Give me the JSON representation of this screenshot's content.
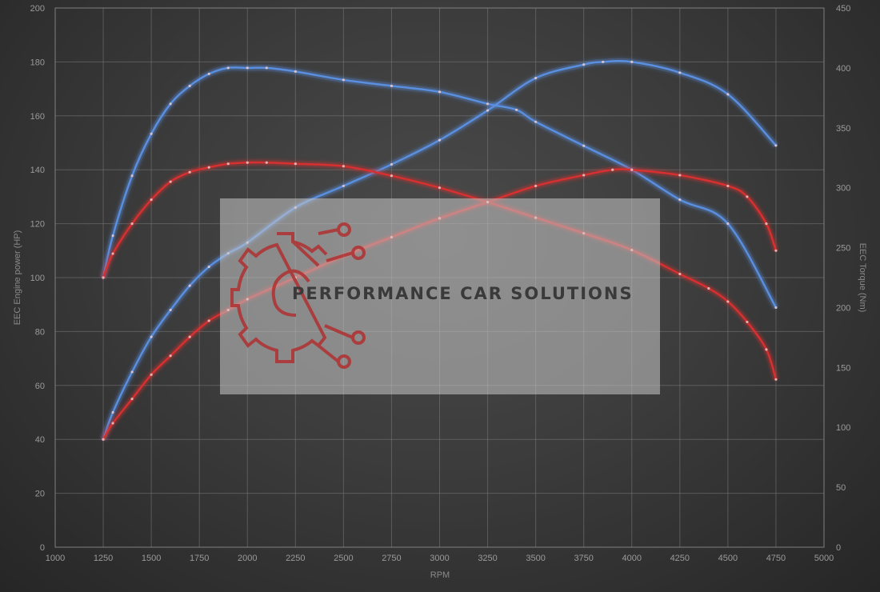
{
  "chart_data": {
    "type": "line",
    "xlabel": "RPM",
    "ylabel": "EEC Engine power (HP)",
    "y2label": "EEC Torque (Nm)",
    "xlim": [
      1000,
      5000
    ],
    "ylim": [
      0,
      200
    ],
    "y2lim": [
      0,
      450
    ],
    "x_ticks": [
      1000,
      1250,
      1500,
      1750,
      2000,
      2250,
      2500,
      2750,
      3000,
      3250,
      3500,
      3750,
      4000,
      4250,
      4500,
      4750,
      5000
    ],
    "y_ticks": [
      0,
      20,
      40,
      60,
      80,
      100,
      120,
      140,
      160,
      180,
      200
    ],
    "y2_ticks": [
      0,
      50,
      100,
      150,
      200,
      250,
      300,
      350,
      400,
      450
    ],
    "grid": true,
    "series": [
      {
        "color": "#5a8fe0",
        "axis": "right",
        "x": [
          1250,
          1300,
          1400,
          1500,
          1600,
          1700,
          1800,
          1900,
          2000,
          2100,
          2250,
          2500,
          2750,
          3000,
          3250,
          3400,
          3500,
          3750,
          4000,
          4250,
          4500,
          4750
        ],
        "y": [
          225,
          260,
          310,
          345,
          370,
          385,
          395,
          400,
          400,
          400,
          397,
          390,
          385,
          380,
          370,
          365,
          355,
          335,
          315,
          290,
          270,
          200
        ]
      },
      {
        "color": "#5a8fe0",
        "axis": "left",
        "x": [
          1250,
          1300,
          1400,
          1500,
          1600,
          1700,
          1800,
          1900,
          2000,
          2250,
          2500,
          2750,
          3000,
          3250,
          3500,
          3750,
          3850,
          4000,
          4250,
          4500,
          4750
        ],
        "y": [
          40,
          50,
          65,
          78,
          88,
          97,
          104,
          109,
          113,
          126,
          134,
          142,
          151,
          162,
          174,
          179,
          180,
          180,
          176,
          168,
          149
        ]
      },
      {
        "color": "#d63030",
        "axis": "right",
        "x": [
          1250,
          1300,
          1400,
          1500,
          1600,
          1700,
          1800,
          1900,
          2000,
          2100,
          2250,
          2500,
          2750,
          3000,
          3250,
          3500,
          3750,
          4000,
          4250,
          4400,
          4500,
          4600,
          4700,
          4750
        ],
        "y": [
          225,
          245,
          270,
          290,
          305,
          313,
          317,
          320,
          321,
          321,
          320,
          318,
          310,
          300,
          288,
          275,
          262,
          248,
          228,
          216,
          205,
          188,
          165,
          140
        ]
      },
      {
        "color": "#d63030",
        "axis": "left",
        "x": [
          1250,
          1300,
          1400,
          1500,
          1600,
          1700,
          1800,
          1900,
          2000,
          2250,
          2500,
          2750,
          3000,
          3250,
          3500,
          3750,
          3900,
          4000,
          4250,
          4500,
          4600,
          4700,
          4750
        ],
        "y": [
          40,
          46,
          55,
          64,
          71,
          78,
          84,
          88,
          92,
          100,
          108,
          115,
          122,
          128,
          134,
          138,
          140,
          140,
          138,
          134,
          130,
          120,
          110
        ]
      }
    ]
  },
  "logo": {
    "text": "PERFORMANCE CAR SOLUTIONS",
    "color": "#b03030"
  }
}
